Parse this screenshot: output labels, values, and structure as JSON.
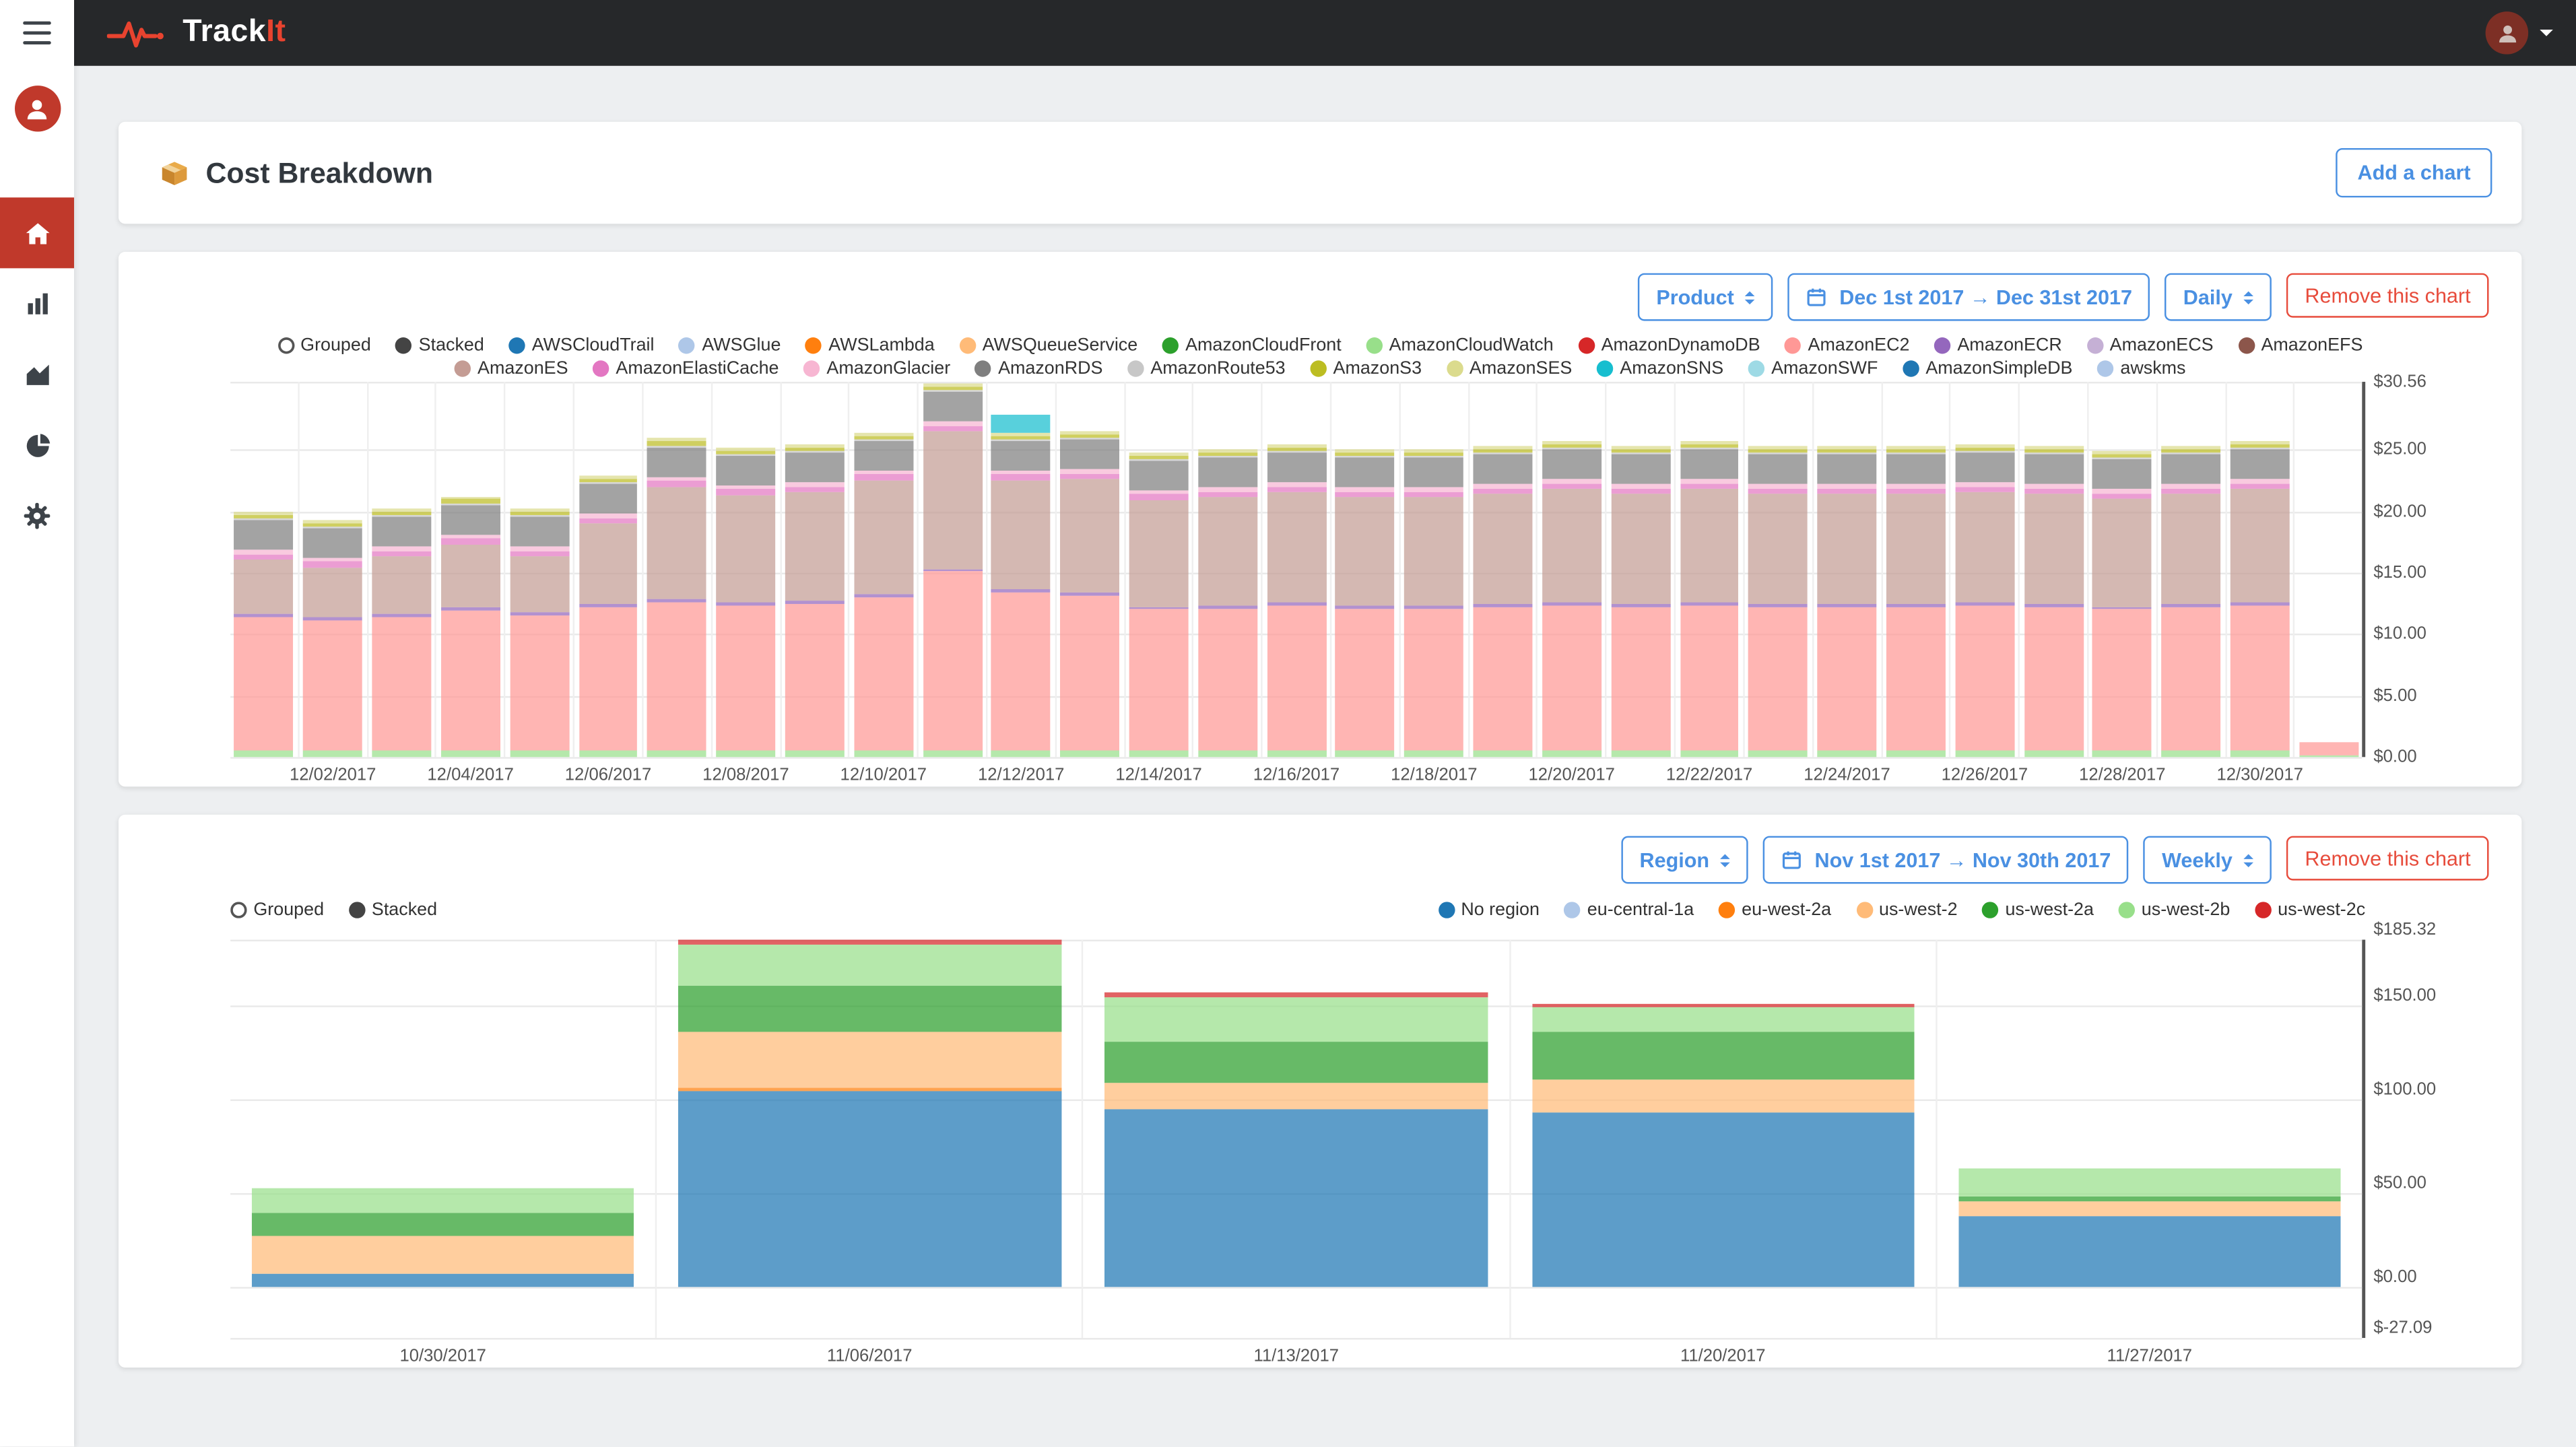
{
  "navbar": {
    "brand_track": "Track",
    "brand_it": "It"
  },
  "header": {
    "title": "Cost Breakdown",
    "add_chart_label": "Add a chart"
  },
  "icons": {
    "hamburger-icon": "menu",
    "heartbeat-pulse-icon": "brand logo",
    "user-avatar-icon": "account",
    "caret-down-icon": "dropdown",
    "home-icon": "dashboard",
    "bar-chart-icon": "charts",
    "area-chart-icon": "trends",
    "pie-chart-icon": "breakdown",
    "gear-icon": "settings",
    "package-icon": "cost breakdown",
    "calendar-icon": "date range",
    "select-caret-icon": "select"
  },
  "colors": {
    "accent_blue": "#4a90e2",
    "danger_red": "#e74c3c",
    "active_red": "#c0392b",
    "navbar_bg": "#26282a"
  },
  "charts": [
    {
      "controls": {
        "group_by": "Product",
        "date_range": "Dec 1st 2017 → Dec 31st 2017",
        "interval": "Daily",
        "remove_label": "Remove this chart"
      },
      "legend_toggles": [
        {
          "label": "Grouped",
          "selected": false
        },
        {
          "label": "Stacked",
          "selected": true
        }
      ],
      "legend": [
        {
          "label": "AWSCloudTrail",
          "color": "#1f77b4"
        },
        {
          "label": "AWSGlue",
          "color": "#aec7e8"
        },
        {
          "label": "AWSLambda",
          "color": "#ff7f0e"
        },
        {
          "label": "AWSQueueService",
          "color": "#ffbb78"
        },
        {
          "label": "AmazonCloudFront",
          "color": "#2ca02c"
        },
        {
          "label": "AmazonCloudWatch",
          "color": "#98df8a"
        },
        {
          "label": "AmazonDynamoDB",
          "color": "#d62728"
        },
        {
          "label": "AmazonEC2",
          "color": "#ff9896"
        },
        {
          "label": "AmazonECR",
          "color": "#9467bd"
        },
        {
          "label": "AmazonECS",
          "color": "#c5b0d5"
        },
        {
          "label": "AmazonEFS",
          "color": "#8c564b"
        },
        {
          "label": "AmazonES",
          "color": "#c49c94"
        },
        {
          "label": "AmazonElastiCache",
          "color": "#e377c2"
        },
        {
          "label": "AmazonGlacier",
          "color": "#f7b6d2"
        },
        {
          "label": "AmazonRDS",
          "color": "#7f7f7f"
        },
        {
          "label": "AmazonRoute53",
          "color": "#c7c7c7"
        },
        {
          "label": "AmazonS3",
          "color": "#bcbd22"
        },
        {
          "label": "AmazonSES",
          "color": "#dbdb8d"
        },
        {
          "label": "AmazonSNS",
          "color": "#17becf"
        },
        {
          "label": "AmazonSWF",
          "color": "#9edae5"
        },
        {
          "label": "AmazonSimpleDB",
          "color": "#1f77b4"
        },
        {
          "label": "awskms",
          "color": "#aec7e8"
        }
      ],
      "chart_data": {
        "type": "bar",
        "stacked": true,
        "ylim": [
          0,
          30.56
        ],
        "yticks": [
          {
            "v": 30.56,
            "label": "$30.56"
          },
          {
            "v": 25,
            "label": "$25.00"
          },
          {
            "v": 20,
            "label": "$20.00"
          },
          {
            "v": 15,
            "label": "$15.00"
          },
          {
            "v": 10,
            "label": "$10.00"
          },
          {
            "v": 5,
            "label": "$5.00"
          },
          {
            "v": 0,
            "label": "$0.00"
          }
        ],
        "categories": [
          "12/01/2017",
          "12/02/2017",
          "12/03/2017",
          "12/04/2017",
          "12/05/2017",
          "12/06/2017",
          "12/07/2017",
          "12/08/2017",
          "12/09/2017",
          "12/10/2017",
          "12/11/2017",
          "12/12/2017",
          "12/13/2017",
          "12/14/2017",
          "12/15/2017",
          "12/16/2017",
          "12/17/2017",
          "12/18/2017",
          "12/19/2017",
          "12/20/2017",
          "12/21/2017",
          "12/22/2017",
          "12/23/2017",
          "12/24/2017",
          "12/25/2017",
          "12/26/2017",
          "12/27/2017",
          "12/28/2017",
          "12/29/2017",
          "12/30/2017",
          "12/31/2017"
        ],
        "shown_xticks": [
          "12/02/2017",
          "12/04/2017",
          "12/06/2017",
          "12/08/2017",
          "12/10/2017",
          "12/12/2017",
          "12/14/2017",
          "12/16/2017",
          "12/18/2017",
          "12/20/2017",
          "12/22/2017",
          "12/24/2017",
          "12/26/2017",
          "12/28/2017",
          "12/30/2017"
        ],
        "series": [
          {
            "name": "AmazonCloudWatch",
            "color": "#98df8a",
            "values": [
              0.6,
              0.6,
              0.6,
              0.6,
              0.6,
              0.6,
              0.6,
              0.6,
              0.6,
              0.6,
              0.6,
              0.6,
              0.6,
              0.6,
              0.6,
              0.6,
              0.6,
              0.6,
              0.6,
              0.6,
              0.6,
              0.6,
              0.6,
              0.6,
              0.6,
              0.6,
              0.6,
              0.6,
              0.6,
              0.6,
              0.1
            ]
          },
          {
            "name": "AmazonEC2",
            "color": "#ff9896",
            "values": [
              10.8,
              10.5,
              10.8,
              11.3,
              10.9,
              11.6,
              12.0,
              11.8,
              11.9,
              12.4,
              14.5,
              12.8,
              12.6,
              11.4,
              11.5,
              11.7,
              11.5,
              11.5,
              11.6,
              11.8,
              11.6,
              11.8,
              11.6,
              11.6,
              11.6,
              11.7,
              11.6,
              11.4,
              11.6,
              11.8,
              1.1
            ]
          },
          {
            "name": "AmazonECR",
            "color": "#9467bd",
            "values": [
              0.25,
              0.25,
              0.25,
              0.25,
              0.25,
              0.25,
              0.25,
              0.25,
              0.25,
              0.25,
              0.25,
              0.25,
              0.25,
              0.25,
              0.25,
              0.25,
              0.25,
              0.25,
              0.25,
              0.25,
              0.25,
              0.25,
              0.25,
              0.25,
              0.25,
              0.25,
              0.25,
              0.25,
              0.25,
              0.25,
              0
            ]
          },
          {
            "name": "AmazonES",
            "color": "#c49c94",
            "values": [
              4.4,
              4.1,
              4.7,
              5.2,
              4.6,
              6.6,
              9.2,
              8.7,
              8.8,
              9.3,
              11.2,
              8.9,
              9.2,
              8.7,
              8.8,
              9.0,
              8.8,
              8.8,
              9.0,
              9.2,
              9.0,
              9.2,
              9.0,
              9.0,
              9.0,
              9.0,
              9.0,
              8.8,
              9.0,
              9.2,
              0
            ]
          },
          {
            "name": "AmazonElastiCache",
            "color": "#e377c2",
            "values": [
              0.45,
              0.45,
              0.45,
              0.45,
              0.45,
              0.45,
              0.45,
              0.45,
              0.45,
              0.45,
              0.45,
              0.45,
              0.45,
              0.45,
              0.45,
              0.45,
              0.45,
              0.45,
              0.45,
              0.45,
              0.45,
              0.45,
              0.45,
              0.45,
              0.45,
              0.45,
              0.45,
              0.45,
              0.45,
              0.45,
              0
            ]
          },
          {
            "name": "AmazonGlacier",
            "color": "#f7b6d2",
            "values": [
              0.35,
              0.35,
              0.35,
              0.35,
              0.35,
              0.35,
              0.35,
              0.35,
              0.35,
              0.35,
              0.35,
              0.35,
              0.35,
              0.35,
              0.35,
              0.35,
              0.35,
              0.35,
              0.35,
              0.35,
              0.35,
              0.35,
              0.35,
              0.35,
              0.35,
              0.35,
              0.35,
              0.35,
              0.35,
              0.35,
              0
            ]
          },
          {
            "name": "AmazonRDS",
            "color": "#7f7f7f",
            "values": [
              2.4,
              2.4,
              2.4,
              2.4,
              2.4,
              2.4,
              2.4,
              2.4,
              2.4,
              2.4,
              2.4,
              2.4,
              2.4,
              2.4,
              2.4,
              2.4,
              2.4,
              2.4,
              2.4,
              2.4,
              2.4,
              2.4,
              2.4,
              2.4,
              2.4,
              2.4,
              2.4,
              2.4,
              2.4,
              2.4,
              0
            ]
          },
          {
            "name": "AmazonRoute53",
            "color": "#c7c7c7",
            "values": [
              0.15,
              0.15,
              0.15,
              0.15,
              0.15,
              0.15,
              0.15,
              0.15,
              0.15,
              0.15,
              0.15,
              0.15,
              0.15,
              0.15,
              0.15,
              0.15,
              0.15,
              0.15,
              0.15,
              0.15,
              0.15,
              0.15,
              0.15,
              0.15,
              0.15,
              0.15,
              0.15,
              0.15,
              0.15,
              0.15,
              0
            ]
          },
          {
            "name": "AmazonS3",
            "color": "#bcbd22",
            "values": [
              0.3,
              0.3,
              0.3,
              0.3,
              0.3,
              0.3,
              0.3,
              0.3,
              0.3,
              0.3,
              0.3,
              0.3,
              0.3,
              0.3,
              0.3,
              0.3,
              0.3,
              0.3,
              0.3,
              0.3,
              0.3,
              0.3,
              0.3,
              0.3,
              0.3,
              0.3,
              0.3,
              0.3,
              0.3,
              0.3,
              0
            ]
          },
          {
            "name": "AmazonSES",
            "color": "#dbdb8d",
            "values": [
              0.25,
              0.25,
              0.25,
              0.25,
              0.25,
              0.25,
              0.25,
              0.25,
              0.25,
              0.25,
              0.25,
              0.25,
              0.25,
              0.25,
              0.25,
              0.25,
              0.25,
              0.25,
              0.25,
              0.25,
              0.25,
              0.25,
              0.25,
              0.25,
              0.25,
              0.25,
              0.25,
              0.25,
              0.25,
              0.25,
              0
            ]
          },
          {
            "name": "AmazonSNS",
            "color": "#17becf",
            "values": [
              0,
              0,
              0,
              0,
              0,
              0,
              0,
              0,
              0,
              0,
              0,
              1.5,
              0,
              0,
              0,
              0,
              0,
              0,
              0,
              0,
              0,
              0,
              0,
              0,
              0,
              0,
              0,
              0,
              0,
              0,
              0
            ]
          }
        ]
      }
    },
    {
      "controls": {
        "group_by": "Region",
        "date_range": "Nov 1st 2017 → Nov 30th 2017",
        "interval": "Weekly",
        "remove_label": "Remove this chart"
      },
      "legend_toggles": [
        {
          "label": "Grouped",
          "selected": false
        },
        {
          "label": "Stacked",
          "selected": true
        }
      ],
      "legend": [
        {
          "label": "No region",
          "color": "#1f77b4"
        },
        {
          "label": "eu-central-1a",
          "color": "#aec7e8"
        },
        {
          "label": "eu-west-2a",
          "color": "#ff7f0e"
        },
        {
          "label": "us-west-2",
          "color": "#ffbb78"
        },
        {
          "label": "us-west-2a",
          "color": "#2ca02c"
        },
        {
          "label": "us-west-2b",
          "color": "#98df8a"
        },
        {
          "label": "us-west-2c",
          "color": "#d62728"
        }
      ],
      "chart_data": {
        "type": "bar",
        "stacked": true,
        "ylim": [
          -27.09,
          185.32
        ],
        "yticks": [
          {
            "v": 185.32,
            "label": "$185.32"
          },
          {
            "v": 150,
            "label": "$150.00"
          },
          {
            "v": 100,
            "label": "$100.00"
          },
          {
            "v": 50,
            "label": "$50.00"
          },
          {
            "v": 0,
            "label": "$0.00"
          },
          {
            "v": -27.09,
            "label": "$-27.09"
          }
        ],
        "categories": [
          "10/30/2017",
          "11/06/2017",
          "11/13/2017",
          "11/20/2017",
          "11/27/2017"
        ],
        "shown_xticks": [
          "10/30/2017",
          "11/06/2017",
          "11/13/2017",
          "11/20/2017",
          "11/27/2017"
        ],
        "series": [
          {
            "name": "No region",
            "color": "#1f77b4",
            "values": [
              7,
              105,
              95,
              93,
              38
            ]
          },
          {
            "name": "eu-central-1a",
            "color": "#aec7e8",
            "values": [
              0,
              0,
              0,
              0,
              0
            ]
          },
          {
            "name": "eu-west-2a",
            "color": "#ff7f0e",
            "values": [
              0,
              1,
              0,
              0,
              0
            ]
          },
          {
            "name": "us-west-2",
            "color": "#ffbb78",
            "values": [
              20,
              30,
              14,
              18,
              8
            ]
          },
          {
            "name": "us-west-2a",
            "color": "#2ca02c",
            "values": [
              13,
              25,
              22,
              25,
              2
            ]
          },
          {
            "name": "us-west-2b",
            "color": "#98df8a",
            "values": [
              13,
              22,
              24,
              13,
              15
            ]
          },
          {
            "name": "us-west-2c",
            "color": "#d62728",
            "values": [
              0,
              2,
              2,
              2,
              0
            ]
          }
        ]
      }
    }
  ]
}
